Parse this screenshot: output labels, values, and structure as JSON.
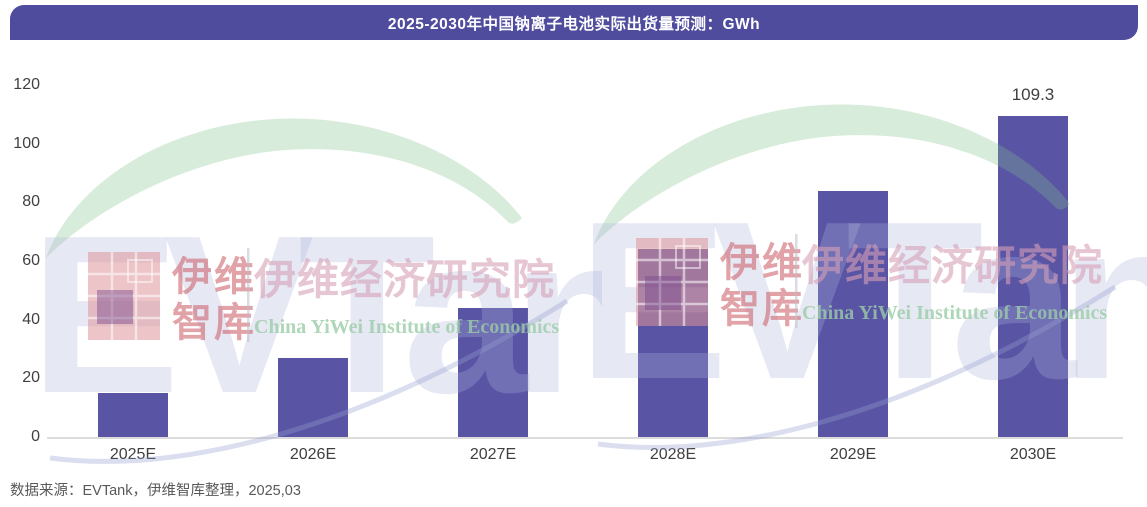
{
  "title_bar": {
    "text": "2025-2030年中国钠离子电池实际出货量预测：GWh",
    "bg_color": "#4F4B9D",
    "text_color": "#FFFFFF"
  },
  "chart_data": {
    "type": "bar",
    "title": "2025-2030年中国钠离子电池实际出货量预测：GWh",
    "ylabel": "",
    "xlabel": "",
    "unit": "GWh",
    "categories": [
      "2025E",
      "2026E",
      "2027E",
      "2028E",
      "2029E",
      "2030E"
    ],
    "values": [
      15,
      27,
      44,
      64,
      84,
      109.3
    ],
    "data_labels": [
      "",
      "",
      "",
      "",
      "",
      "109.3"
    ],
    "ylim": [
      0,
      120
    ],
    "yticks": [
      0,
      20,
      40,
      60,
      80,
      100,
      120
    ],
    "grid": false,
    "legend": "none",
    "bar_color": "#5A54A5",
    "axis_color": "#DCDCDC",
    "tick_label_color": "#404040"
  },
  "source_note": "数据来源：EVTank，伊维智库整理，2025,03",
  "watermark": {
    "logo_text": "EVTank",
    "brand_cn_line1": "伊维",
    "brand_cn_line2": "智库",
    "institute_cn": "伊维经济研究院",
    "institute_en": "China YiWei Institute of Economics"
  }
}
